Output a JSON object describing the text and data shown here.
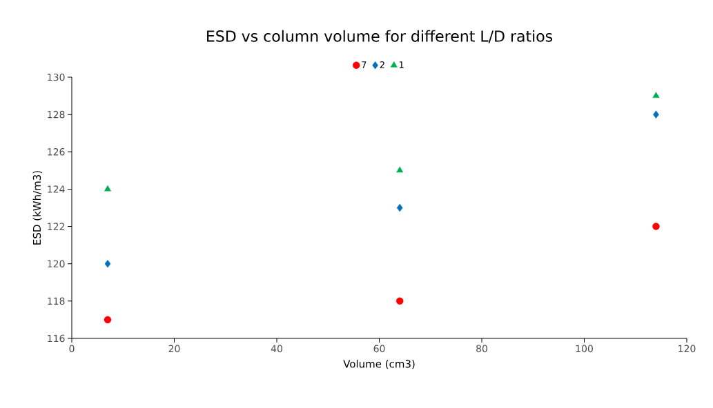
{
  "chart_data": {
    "type": "scatter",
    "title": "ESD vs column volume for different L/D ratios",
    "xlabel": "Volume (cm3)",
    "ylabel": "ESD (kWh/m3)",
    "x": [
      7,
      64,
      114
    ],
    "series": [
      {
        "name": "7",
        "color": "#ff0000",
        "marker": "circle",
        "values": [
          117,
          118,
          122
        ]
      },
      {
        "name": "2",
        "color": "#0070c0",
        "marker": "diamond",
        "values": [
          120,
          123,
          128
        ]
      },
      {
        "name": "1",
        "color": "#00b050",
        "marker": "triangle",
        "values": [
          124,
          125,
          129
        ]
      }
    ],
    "xlim": [
      0,
      120
    ],
    "ylim": [
      116,
      130
    ],
    "xticks": [
      0,
      20,
      40,
      60,
      80,
      100,
      120
    ],
    "yticks": [
      116,
      118,
      120,
      122,
      124,
      126,
      128,
      130
    ],
    "grid": false,
    "legend": "top"
  }
}
